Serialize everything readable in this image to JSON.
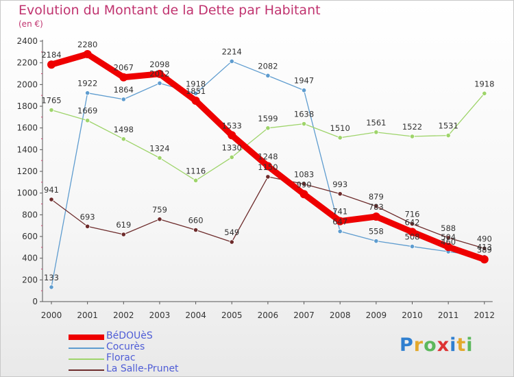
{
  "header": {
    "title": "Evolution du Montant de la Dette par Habitant",
    "unit": "(en €)"
  },
  "colors": {
    "BéDOUèS": "#ee0000",
    "Cocurès": "#5e9ccf",
    "Florac": "#9ed46a",
    "La Salle-Prunet": "#6d2b2b",
    "title": "#c0336f",
    "axis": "#555555"
  },
  "chart_data": {
    "type": "line",
    "title": "Evolution du Montant de la Dette par Habitant",
    "ylabel": "(en €)",
    "xlabel": "",
    "x": [
      "2000",
      "2001",
      "2002",
      "2003",
      "2004",
      "2005",
      "2006",
      "2007",
      "2008",
      "2009",
      "2010",
      "2011",
      "2012"
    ],
    "ylim": [
      0,
      2400
    ],
    "yticks": [
      0,
      200,
      400,
      600,
      800,
      1000,
      1200,
      1400,
      1600,
      1800,
      2000,
      2200,
      2400
    ],
    "grid": false,
    "legend": "bottom-left",
    "series": [
      {
        "name": "BéDOUèS",
        "values": [
          2184,
          2280,
          2067,
          2098,
          1851,
          1533,
          1248,
          990,
          741,
          783,
          642,
          504,
          389
        ],
        "labels": [
          "2184",
          "2280",
          "2067",
          "2098",
          "1851",
          "1533",
          "1248",
          "990",
          "741",
          "783",
          "642",
          "504",
          "389"
        ]
      },
      {
        "name": "Cocurès",
        "values": [
          133,
          1922,
          1864,
          2012,
          1918,
          2214,
          2082,
          1947,
          647,
          558,
          508,
          460,
          413
        ],
        "labels": [
          "133",
          "1922",
          "1864",
          "2012",
          "1918",
          "2214",
          "2082",
          "1947",
          "647",
          "558",
          "508",
          "460",
          "413"
        ]
      },
      {
        "name": "Florac",
        "values": [
          1765,
          1669,
          1498,
          1324,
          1116,
          1330,
          1599,
          1638,
          1510,
          1561,
          1522,
          1531,
          1918
        ],
        "labels": [
          "1765",
          "1669",
          "1498",
          "1324",
          "1116",
          "1330",
          "1599",
          "1638",
          "1510",
          "1561",
          "1522",
          "1531",
          "1918"
        ]
      },
      {
        "name": "La Salle-Prunet",
        "values": [
          941,
          693,
          619,
          759,
          660,
          549,
          1150,
          1083,
          993,
          879,
          716,
          588,
          490
        ],
        "labels": [
          "941",
          "693",
          "619",
          "759",
          "660",
          "549",
          "1150",
          "1083",
          "993",
          "879",
          "716",
          "588",
          "490"
        ]
      }
    ]
  },
  "logo": {
    "text": "Proxiti"
  }
}
